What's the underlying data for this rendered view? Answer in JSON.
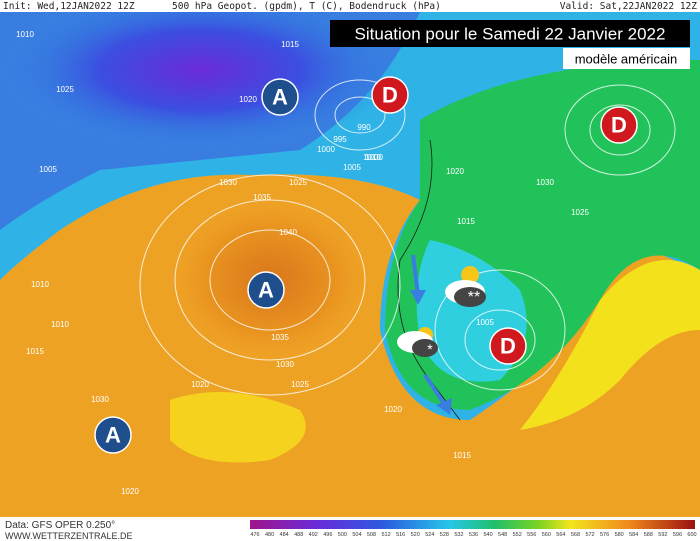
{
  "header": {
    "init": "Init: Wed,12JAN2022 12Z",
    "fields": "500 hPa Geopot. (gpdm), T (C), Bodendruck (hPa)",
    "valid": "Valid: Sat,22JAN2022 12Z"
  },
  "title": "Situation pour le Samedi 22 Janvier 2022",
  "subtitle": "modèle américain",
  "centers": [
    {
      "label": "A"
    },
    {
      "label": "D"
    },
    {
      "label": "D"
    },
    {
      "label": "A"
    },
    {
      "label": "D"
    },
    {
      "label": "A"
    }
  ],
  "isobars": [
    "1010",
    "1015",
    "1020",
    "1025",
    "1030",
    "1035",
    "1040",
    "1035",
    "1030",
    "1025",
    "1020",
    "1015",
    "1010",
    "1005",
    "1000",
    "995",
    "990",
    "1000",
    "1005",
    "1010",
    "1015",
    "1020",
    "1025",
    "1030",
    "1020",
    "1015",
    "1020",
    "1025",
    "1030",
    "1010",
    "1005",
    "1015"
  ],
  "footer": {
    "data": "Data: GFS OPER 0.250°",
    "site": "WWW.WETTERZENTRALE.DE"
  },
  "scale": [
    "476",
    "480",
    "484",
    "488",
    "492",
    "496",
    "500",
    "504",
    "508",
    "512",
    "516",
    "520",
    "524",
    "528",
    "532",
    "536",
    "540",
    "548",
    "552",
    "556",
    "560",
    "564",
    "568",
    "572",
    "576",
    "580",
    "584",
    "588",
    "592",
    "596",
    "600"
  ]
}
